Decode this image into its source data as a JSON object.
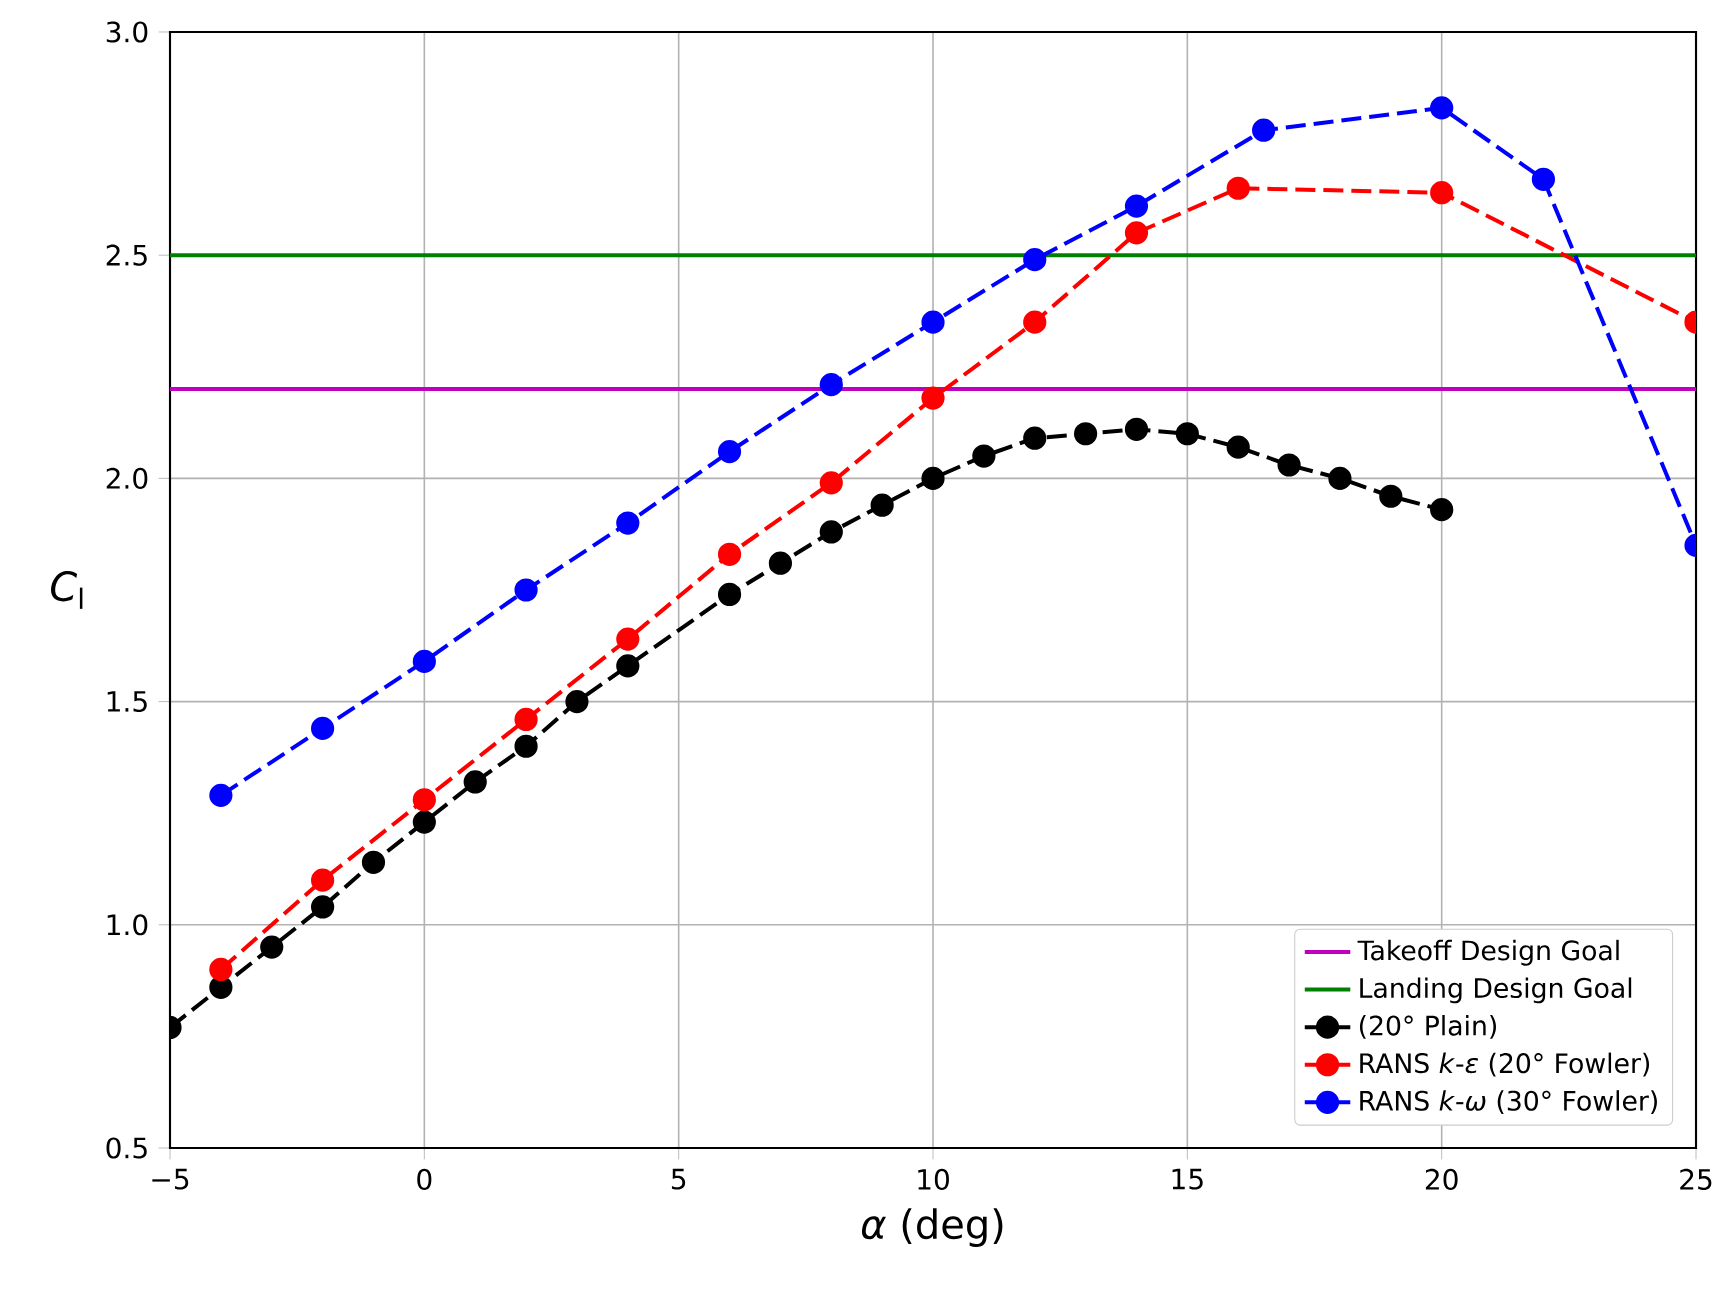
{
  "chart_data": {
    "type": "line",
    "xlabel": "*α* (deg)",
    "ylabel": "*C*$_{l}$",
    "xlim": [
      -5,
      25
    ],
    "xticks": [
      {
        "value": -5,
        "label": "−5"
      },
      0,
      5,
      10,
      15,
      20,
      25
    ],
    "ylim": [
      0.5,
      3.0
    ],
    "yticks": [
      {
        "value": 0.5,
        "label": "0.5"
      },
      {
        "value": 1.0,
        "label": "1.0"
      },
      {
        "value": 1.5,
        "label": "1.5"
      },
      {
        "value": 2.0,
        "label": "2.0"
      },
      {
        "value": 2.5,
        "label": "2.5"
      },
      {
        "value": 3.0,
        "label": "3.0"
      }
    ],
    "grid": true,
    "legend": "bottom right",
    "marker": "circle",
    "line_style": "dashed",
    "ref_lines": [
      {
        "axis": "y",
        "value": 2.2,
        "label": "Takeoff Design Goal",
        "color": "#bf00bf",
        "line_style": "solid"
      },
      {
        "axis": "y",
        "value": 2.5,
        "label": "Landing Design Goal",
        "color": "#008000",
        "line_style": "solid"
      }
    ],
    "series": [
      {
        "name": "(20° Plain)",
        "color": "#000000",
        "x": [
          -5,
          -4,
          -3,
          -2,
          -1,
          0,
          1,
          2,
          3,
          4,
          6,
          7,
          8,
          9,
          10,
          11,
          12,
          13,
          14,
          15,
          16,
          17,
          18,
          19,
          20
        ],
        "values": [
          0.77,
          0.86,
          0.95,
          1.04,
          1.14,
          1.23,
          1.32,
          1.4,
          1.5,
          1.58,
          1.74,
          1.81,
          1.88,
          1.94,
          2.0,
          2.05,
          2.09,
          2.1,
          2.11,
          2.1,
          2.07,
          2.03,
          2.0,
          1.96,
          1.93
        ]
      },
      {
        "name": "RANS *k*-*ε* (20° Fowler)",
        "color": "#ff0000",
        "x": [
          -4,
          -2,
          0,
          2,
          4,
          6,
          8,
          10,
          12,
          14,
          16,
          20,
          25
        ],
        "values": [
          0.9,
          1.1,
          1.28,
          1.46,
          1.64,
          1.83,
          1.99,
          2.18,
          2.35,
          2.55,
          2.65,
          2.64,
          2.35
        ]
      },
      {
        "name": "RANS *k*-*ω* (30° Fowler)",
        "color": "#0000ff",
        "x": [
          -4,
          -2,
          0,
          2,
          4,
          6,
          8,
          10,
          12,
          14,
          16.5,
          20,
          22,
          25
        ],
        "values": [
          1.29,
          1.44,
          1.59,
          1.75,
          1.9,
          2.06,
          2.21,
          2.35,
          2.49,
          2.61,
          2.78,
          2.83,
          2.67,
          1.85
        ]
      }
    ]
  }
}
